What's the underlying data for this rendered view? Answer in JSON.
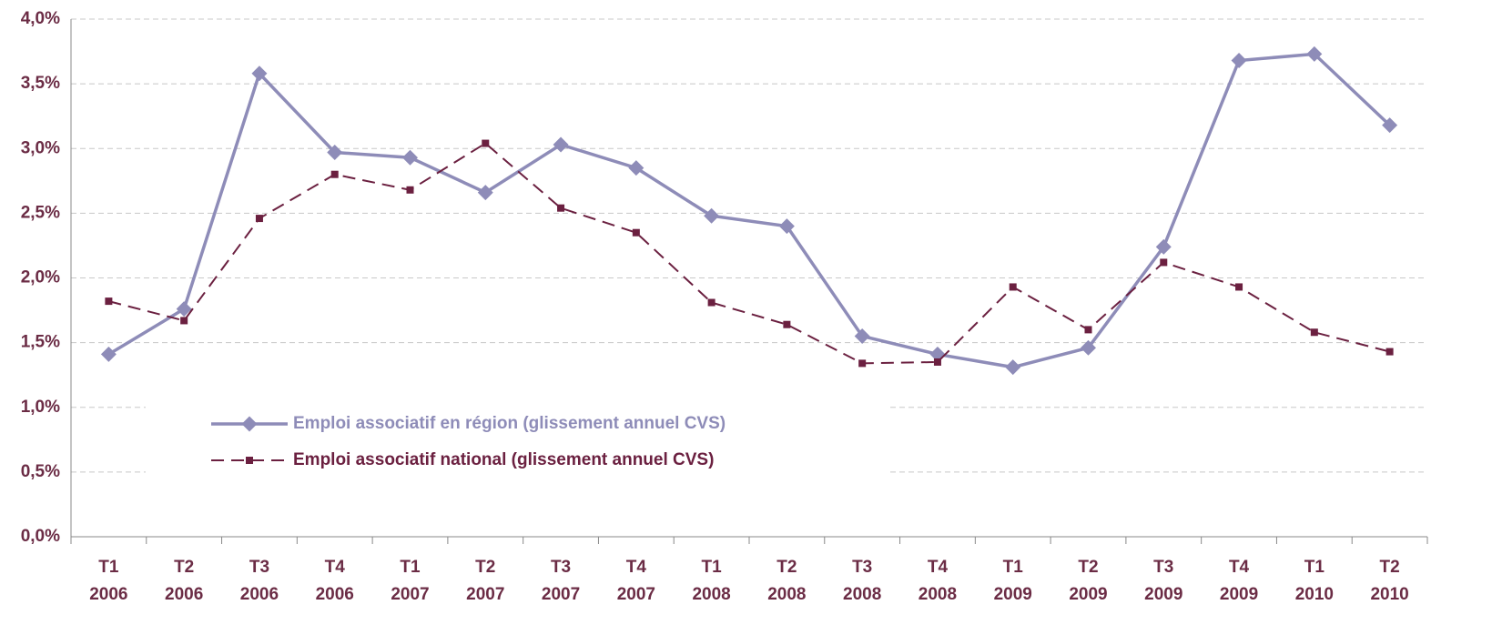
{
  "chart_data": {
    "type": "line",
    "categories": [
      "T1 2006",
      "T2 2006",
      "T3 2006",
      "T4 2006",
      "T1 2007",
      "T2 2007",
      "T3 2007",
      "T4 2007",
      "T1 2008",
      "T2 2008",
      "T3 2008",
      "T4 2008",
      "T1 2009",
      "T2 2009",
      "T3 2009",
      "T4 2009",
      "T1 2010",
      "T2 2010"
    ],
    "series": [
      {
        "name": "Emploi associatif en région (glissement annuel CVS)",
        "color": "#8e8cb8",
        "values": [
          1.41,
          1.76,
          3.58,
          2.97,
          2.93,
          2.66,
          3.03,
          2.85,
          2.48,
          2.4,
          1.55,
          1.41,
          1.31,
          1.46,
          2.24,
          3.68,
          3.73,
          3.18
        ]
      },
      {
        "name": "Emploi associatif national (glissement annuel CVS)",
        "color": "#6b2040",
        "values": [
          1.82,
          1.67,
          2.46,
          2.8,
          2.68,
          3.04,
          2.54,
          2.35,
          1.81,
          1.64,
          1.34,
          1.35,
          1.93,
          1.6,
          2.12,
          1.93,
          1.58,
          1.43
        ]
      }
    ],
    "ylim": [
      0,
      4
    ],
    "yticks": [
      {
        "value": 0,
        "label": "0,0%"
      },
      {
        "value": 0.5,
        "label": "0,5%"
      },
      {
        "value": 1,
        "label": "1,0%"
      },
      {
        "value": 1.5,
        "label": "1,5%"
      },
      {
        "value": 2,
        "label": "2,0%"
      },
      {
        "value": 2.5,
        "label": "2,5%"
      },
      {
        "value": 3,
        "label": "3,0%"
      },
      {
        "value": 3.5,
        "label": "3,5%"
      },
      {
        "value": 4,
        "label": "4,0%"
      }
    ],
    "grid": true
  }
}
